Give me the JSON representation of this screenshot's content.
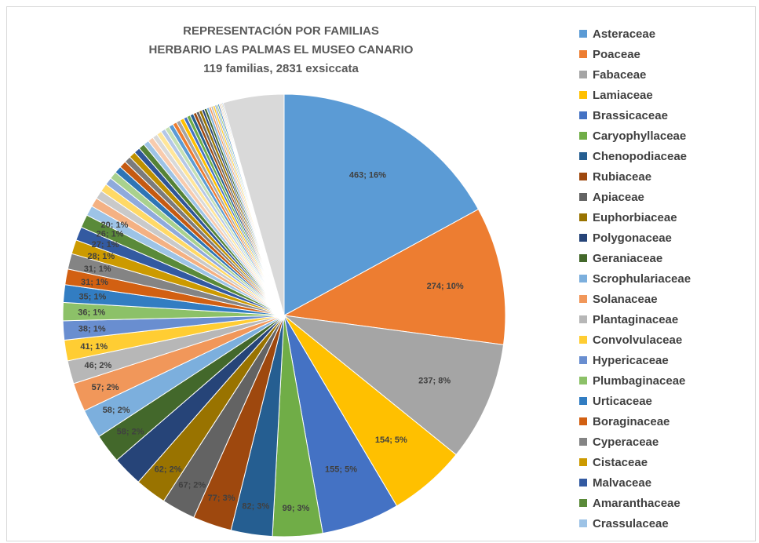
{
  "chart_data": {
    "type": "pie",
    "title": "REPRESENTACIÓN POR FAMILIAS",
    "subtitle": "HERBARIO LAS PALMAS EL MUSEO CANARIO",
    "subtitle2": "119 familias, 2831 exsiccata",
    "legend_position": "right",
    "total": 2831,
    "slices": [
      {
        "name": "Asteraceae",
        "value": 463,
        "label": "463; 16%",
        "color": "#5B9BD5"
      },
      {
        "name": "Poaceae",
        "value": 274,
        "label": "274; 10%",
        "color": "#ED7D31"
      },
      {
        "name": "Fabaceae",
        "value": 237,
        "label": "237; 8%",
        "color": "#A5A5A5"
      },
      {
        "name": "Lamiaceae",
        "value": 154,
        "label": "154; 5%",
        "color": "#FFC000"
      },
      {
        "name": "Brassicaceae",
        "value": 155,
        "label": "155; 5%",
        "color": "#4472C4"
      },
      {
        "name": "Caryophyllaceae",
        "value": 99,
        "label": "99; 3%",
        "color": "#70AD47"
      },
      {
        "name": "Chenopodiaceae",
        "value": 82,
        "label": "82; 3%",
        "color": "#255E91"
      },
      {
        "name": "Rubiaceae",
        "value": 77,
        "label": "77; 3%",
        "color": "#9E480E"
      },
      {
        "name": "Apiaceae",
        "value": 67,
        "label": "67; 2%",
        "color": "#636363"
      },
      {
        "name": "Euphorbiaceae",
        "value": 62,
        "label": "62; 2%",
        "color": "#997300"
      },
      {
        "name": "Polygonaceae",
        "value": 60,
        "label": "",
        "color": "#264478"
      },
      {
        "name": "Geraniaceae",
        "value": 58,
        "label": "58; 2%",
        "color": "#43682B"
      },
      {
        "name": "Scrophulariaceae",
        "value": 58,
        "label": "58; 2%",
        "color": "#7CAFDD"
      },
      {
        "name": "Solanaceae",
        "value": 57,
        "label": "57; 2%",
        "color": "#F1975A"
      },
      {
        "name": "Plantaginaceae",
        "value": 46,
        "label": "46; 2%",
        "color": "#B7B7B7"
      },
      {
        "name": "Convolvulaceae",
        "value": 41,
        "label": "41; 1%",
        "color": "#FFCD33"
      },
      {
        "name": "Hypericaceae",
        "value": 38,
        "label": "38; 1%",
        "color": "#698ED0"
      },
      {
        "name": "Plumbaginaceae",
        "value": 36,
        "label": "36; 1%",
        "color": "#8CC168"
      },
      {
        "name": "Urticaceae",
        "value": 35,
        "label": "35; 1%",
        "color": "#327DC2"
      },
      {
        "name": "Boraginaceae",
        "value": 31,
        "label": "31; 1%",
        "color": "#D26012"
      },
      {
        "name": "Cyperaceae",
        "value": 31,
        "label": "31; 1%",
        "color": "#848484"
      },
      {
        "name": "Cistaceae",
        "value": 28,
        "label": "28; 1%",
        "color": "#CC9A00"
      },
      {
        "name": "Malvaceae",
        "value": 27,
        "label": "27; 1%",
        "color": "#335AA1"
      },
      {
        "name": "Amaranthaceae",
        "value": 26,
        "label": "26; 1%",
        "color": "#5A8A39"
      },
      {
        "name": "Crassulaceae",
        "value": 20,
        "label": "20; 1%",
        "color": "#9DC3E6"
      }
    ],
    "remaining_small_slices": [
      {
        "value": 18,
        "color": "#F4B183"
      },
      {
        "value": 17,
        "color": "#C9C9C9"
      },
      {
        "value": 16,
        "color": "#FFD966"
      },
      {
        "value": 15,
        "color": "#8FAADC"
      },
      {
        "value": 15,
        "color": "#A9D18E"
      },
      {
        "value": 14,
        "color": "#2E75B6"
      },
      {
        "value": 14,
        "color": "#C55A11"
      },
      {
        "value": 13,
        "color": "#7B7B7B"
      },
      {
        "value": 13,
        "color": "#BF9000"
      },
      {
        "value": 12,
        "color": "#2F5597"
      },
      {
        "value": 12,
        "color": "#548235"
      },
      {
        "value": 11,
        "color": "#9DC3E6"
      },
      {
        "value": 11,
        "color": "#F8CBAD"
      },
      {
        "value": 10,
        "color": "#D9D9D9"
      },
      {
        "value": 10,
        "color": "#FFE699"
      },
      {
        "value": 9,
        "color": "#B4C7E7"
      },
      {
        "value": 9,
        "color": "#C5E0B4"
      },
      {
        "value": 9,
        "color": "#5B9BD5"
      },
      {
        "value": 8,
        "color": "#ED7D31"
      },
      {
        "value": 8,
        "color": "#A5A5A5"
      },
      {
        "value": 8,
        "color": "#FFC000"
      },
      {
        "value": 7,
        "color": "#4472C4"
      },
      {
        "value": 7,
        "color": "#70AD47"
      },
      {
        "value": 7,
        "color": "#255E91"
      },
      {
        "value": 6,
        "color": "#9E480E"
      },
      {
        "value": 6,
        "color": "#636363"
      },
      {
        "value": 6,
        "color": "#997300"
      },
      {
        "value": 5,
        "color": "#264478"
      },
      {
        "value": 5,
        "color": "#43682B"
      },
      {
        "value": 5,
        "color": "#7CAFDD"
      },
      {
        "value": 4,
        "color": "#F1975A"
      },
      {
        "value": 4,
        "color": "#B7B7B7"
      },
      {
        "value": 4,
        "color": "#FFCD33"
      },
      {
        "value": 3,
        "color": "#698ED0"
      },
      {
        "value": 3,
        "color": "#8CC168"
      },
      {
        "value": 3,
        "color": "#327DC2"
      },
      {
        "value": 2,
        "color": "#D26012"
      },
      {
        "value": 2,
        "color": "#848484"
      },
      {
        "value": 2,
        "color": "#CC9A00"
      },
      {
        "value": 2,
        "color": "#335AA1"
      }
    ],
    "rest_of_families": {
      "value": 121,
      "color": "#D9D9D9"
    }
  }
}
